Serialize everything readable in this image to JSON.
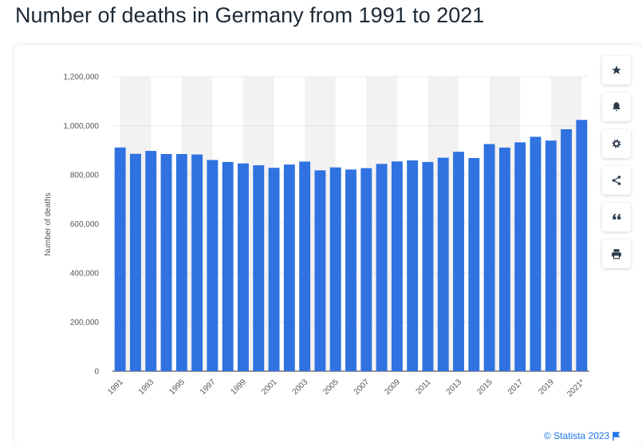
{
  "page": {
    "title": "Number of deaths in Germany from 1991 to 2021"
  },
  "toolbar": {
    "buttons": [
      {
        "name": "favorite-star-icon"
      },
      {
        "name": "notification-bell-icon"
      },
      {
        "name": "settings-gear-icon"
      },
      {
        "name": "share-icon"
      },
      {
        "name": "quote-icon"
      },
      {
        "name": "print-icon"
      }
    ]
  },
  "footer": {
    "credit": "© Statista 2023",
    "flag_icon": "flag-icon"
  },
  "colors": {
    "bar": "#2f72e0",
    "grid": "#c9c9c9",
    "band": "#f2f2f2",
    "axis_text": "#555555",
    "title": "#1c2a36",
    "link": "#1a73e8"
  },
  "chart_data": {
    "type": "bar",
    "title": "",
    "xlabel": "",
    "ylabel": "Number of deaths",
    "ylim": [
      0,
      1200000
    ],
    "yticks": [
      0,
      200000,
      400000,
      600000,
      800000,
      1000000,
      1200000
    ],
    "ytick_labels": [
      "0",
      "200,000",
      "400,000",
      "600,000",
      "800,000",
      "1,000,000",
      "1,200,000"
    ],
    "categories": [
      "1991",
      "1992",
      "1993",
      "1994",
      "1995",
      "1996",
      "1997",
      "1998",
      "1999",
      "2000",
      "2001",
      "2002",
      "2003",
      "2004",
      "2005",
      "2006",
      "2007",
      "2008",
      "2009",
      "2010",
      "2011",
      "2012",
      "2013",
      "2014",
      "2015",
      "2016",
      "2017",
      "2018",
      "2019",
      "2020",
      "2021*"
    ],
    "visible_xtick_labels": [
      "1991",
      "1993",
      "1995",
      "1997",
      "1999",
      "2001",
      "2003",
      "2005",
      "2007",
      "2009",
      "2011",
      "2013",
      "2015",
      "2017",
      "2019",
      "2021*"
    ],
    "values": [
      911245,
      885443,
      897270,
      884661,
      884588,
      882843,
      860389,
      852382,
      846330,
      838797,
      828541,
      841686,
      853946,
      818271,
      830227,
      821627,
      827155,
      844439,
      854544,
      858768,
      852328,
      869582,
      893825,
      868356,
      925200,
      910899,
      932272,
      954874,
      939520,
      985572,
      1023687
    ],
    "grid": true,
    "legend": "none"
  }
}
